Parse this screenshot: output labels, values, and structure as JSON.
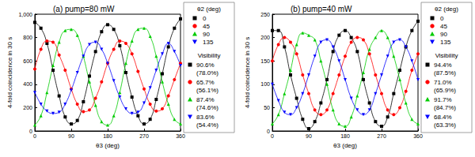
{
  "chart_data": [
    {
      "type": "line",
      "title": "(a) pump=80 mW",
      "x_label": "θ3 (deg)",
      "y_label": "4-fold coincidence in 30 s",
      "legend_title": "θ2 (deg)",
      "visibility_title": "Visibility",
      "x": [
        0,
        15,
        30,
        45,
        60,
        75,
        90,
        105,
        120,
        135,
        150,
        165,
        180,
        195,
        210,
        225,
        240,
        255,
        270,
        285,
        300,
        315,
        330,
        345,
        360
      ],
      "xlim": [
        0,
        360
      ],
      "xticks": [
        0,
        90,
        180,
        270,
        360
      ],
      "ylim": [
        0,
        1000
      ],
      "yticks": [
        0,
        200,
        400,
        600,
        800,
        1000
      ],
      "grid": false,
      "series": [
        {
          "name": "0",
          "color": "#000000",
          "marker": "square",
          "visibility": [
            "90.6%",
            "(78.0%)"
          ],
          "values": [
            930,
            880,
            750,
            520,
            300,
            120,
            60,
            90,
            250,
            470,
            680,
            850,
            910,
            870,
            730,
            500,
            290,
            130,
            60,
            100,
            270,
            490,
            720,
            880,
            960
          ]
        },
        {
          "name": "45",
          "color": "#ff0000",
          "marker": "circle",
          "visibility": [
            "65.7%",
            "(56.1%)"
          ],
          "values": [
            530,
            700,
            770,
            760,
            650,
            520,
            360,
            230,
            165,
            180,
            280,
            420,
            580,
            700,
            770,
            750,
            660,
            510,
            360,
            230,
            170,
            190,
            300,
            440,
            580
          ]
        },
        {
          "name": "90",
          "color": "#00cc00",
          "marker": "triangle",
          "visibility": [
            "87.4%",
            "(74.6%)"
          ],
          "values": [
            50,
            130,
            330,
            560,
            760,
            860,
            870,
            820,
            640,
            420,
            220,
            80,
            50,
            130,
            330,
            580,
            770,
            870,
            880,
            810,
            640,
            420,
            230,
            100,
            60
          ]
        },
        {
          "name": "135",
          "color": "#0000ff",
          "marker": "triangle-down",
          "visibility": [
            "83.6%",
            "(54.4%)"
          ],
          "values": [
            330,
            230,
            170,
            150,
            160,
            230,
            350,
            500,
            640,
            740,
            760,
            700,
            580,
            430,
            290,
            190,
            150,
            160,
            240,
            370,
            520,
            660,
            750,
            680,
            560
          ]
        }
      ]
    },
    {
      "type": "line",
      "title": "(b) pump=40 mW",
      "x_label": "θ3 (deg)",
      "y_label": "4-fold coincidence in 30 s",
      "legend_title": "θ2 (deg)",
      "visibility_title": "Visibility",
      "x": [
        0,
        15,
        30,
        45,
        60,
        75,
        90,
        105,
        120,
        135,
        150,
        165,
        180,
        195,
        210,
        225,
        240,
        255,
        270,
        285,
        300,
        315,
        330,
        345,
        360
      ],
      "xlim": [
        0,
        360
      ],
      "xticks": [
        0,
        90,
        180,
        270,
        360
      ],
      "ylim": [
        0,
        250
      ],
      "yticks": [
        0,
        50,
        100,
        150,
        200,
        250
      ],
      "grid": false,
      "series": [
        {
          "name": "0",
          "color": "#000000",
          "marker": "square",
          "visibility": [
            "94.4%",
            "(87.5%)"
          ],
          "values": [
            215,
            215,
            180,
            120,
            70,
            25,
            5,
            20,
            60,
            110,
            170,
            205,
            215,
            200,
            170,
            110,
            60,
            20,
            10,
            30,
            80,
            130,
            180,
            215,
            235
          ]
        },
        {
          "name": "45",
          "color": "#ff0000",
          "marker": "circle",
          "visibility": [
            "71.0%",
            "(65.9%)"
          ],
          "values": [
            150,
            185,
            200,
            190,
            165,
            120,
            80,
            45,
            35,
            45,
            80,
            120,
            160,
            190,
            200,
            195,
            165,
            120,
            80,
            45,
            35,
            50,
            85,
            130,
            165
          ]
        },
        {
          "name": "90",
          "color": "#00cc00",
          "marker": "triangle",
          "visibility": [
            "91.7%",
            "(84.7%)"
          ],
          "values": [
            15,
            35,
            80,
            130,
            185,
            210,
            205,
            195,
            150,
            100,
            45,
            15,
            10,
            30,
            75,
            125,
            175,
            200,
            215,
            200,
            160,
            110,
            60,
            25,
            15
          ]
        },
        {
          "name": "135",
          "color": "#0000ff",
          "marker": "triangle-down",
          "visibility": [
            "68.4%",
            "(63.3%)"
          ],
          "values": [
            100,
            65,
            40,
            35,
            50,
            80,
            120,
            160,
            190,
            195,
            180,
            150,
            110,
            70,
            45,
            35,
            45,
            80,
            120,
            160,
            190,
            195,
            180,
            150,
            110
          ]
        }
      ]
    }
  ]
}
